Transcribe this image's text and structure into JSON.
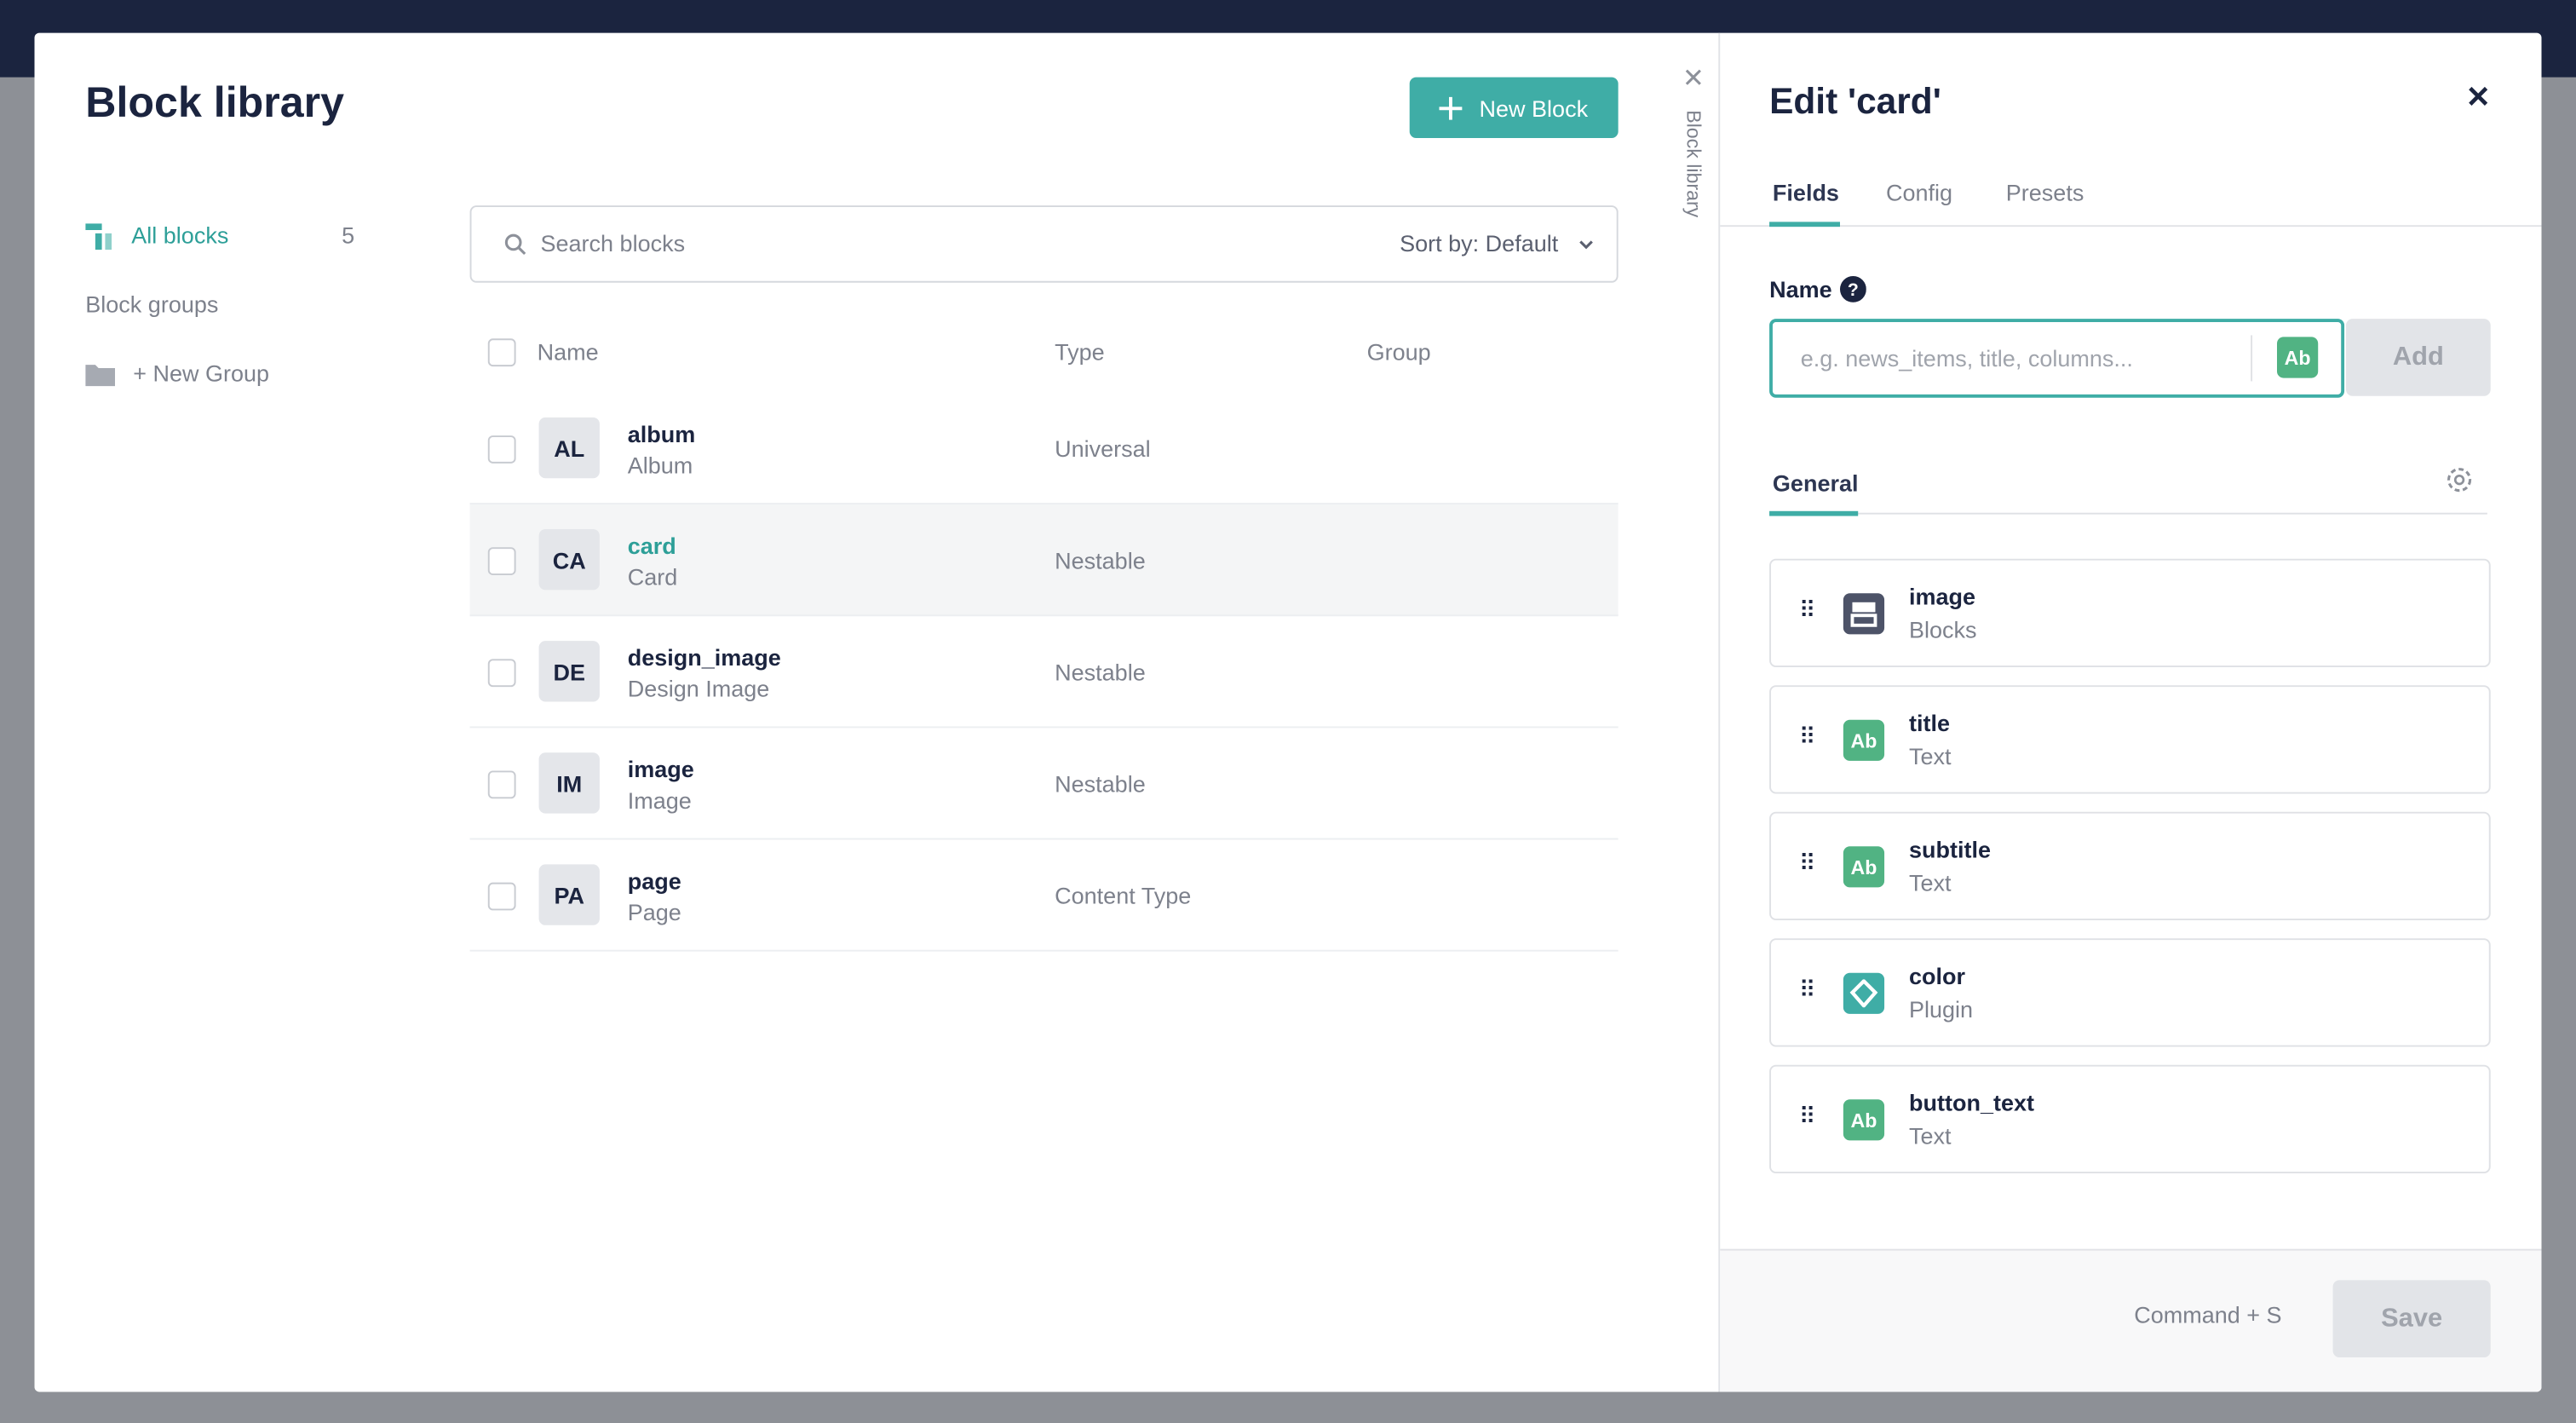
{
  "library": {
    "title": "Block library",
    "new_block": "New Block",
    "side_tab": "Block library",
    "sidebar": {
      "all_blocks": "All blocks",
      "count": 5,
      "groups": "Block groups",
      "new_group": "+ New Group"
    },
    "search_placeholder": "Search blocks",
    "sort": "Sort by: Default",
    "columns": [
      "Name",
      "Type",
      "Group"
    ],
    "rows": [
      {
        "initials": "AL",
        "name": "album",
        "display": "Album",
        "type": "Universal"
      },
      {
        "initials": "CA",
        "name": "card",
        "display": "Card",
        "type": "Nestable"
      },
      {
        "initials": "DE",
        "name": "design_image",
        "display": "Design Image",
        "type": "Nestable"
      },
      {
        "initials": "IM",
        "name": "image",
        "display": "Image",
        "type": "Nestable"
      },
      {
        "initials": "PA",
        "name": "page",
        "display": "Page",
        "type": "Content Type"
      }
    ]
  },
  "editor": {
    "title": "Edit 'card'",
    "tabs": [
      "Fields",
      "Config",
      "Presets"
    ],
    "name_label": "Name",
    "name_placeholder": "e.g. news_items, title, columns...",
    "type_badge": "Ab",
    "add": "Add",
    "section": "General",
    "fields": [
      {
        "name": "image",
        "type": "Blocks"
      },
      {
        "name": "title",
        "type": "Text",
        "icon": "Ab"
      },
      {
        "name": "subtitle",
        "type": "Text",
        "icon": "Ab"
      },
      {
        "name": "color",
        "type": "Plugin"
      },
      {
        "name": "button_text",
        "type": "Text",
        "icon": "Ab"
      }
    ],
    "shortcut": "Command + S",
    "save": "Save"
  }
}
